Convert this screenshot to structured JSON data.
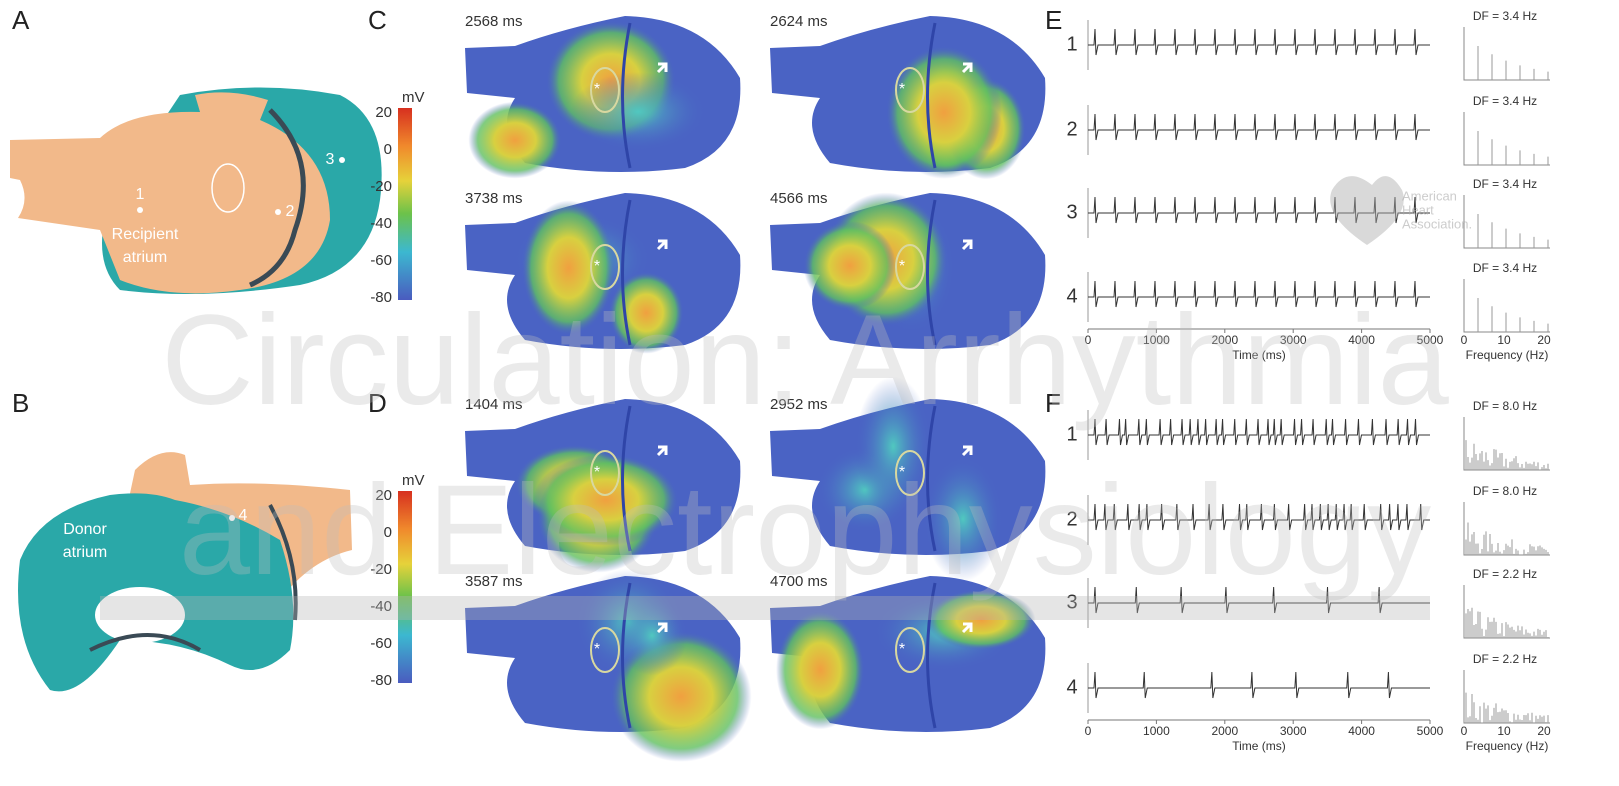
{
  "watermark": {
    "line1": "Circulation: Arrhythmia",
    "line2": "and Electrophysiology",
    "logo": [
      "American",
      "Heart",
      "Association."
    ]
  },
  "panels": {
    "A": {
      "label": "A",
      "points": [
        "1",
        "2",
        "3"
      ],
      "region": [
        "Recipient",
        "atrium"
      ]
    },
    "B": {
      "label": "B",
      "points": [
        "4"
      ],
      "region": [
        "Donor",
        "atrium"
      ]
    },
    "C": {
      "label": "C",
      "colorbar": {
        "unit": "mV",
        "ticks": [
          "20",
          "0",
          "-20",
          "-40",
          "-60",
          "-80"
        ]
      },
      "frames": [
        "2568 ms",
        "2624 ms",
        "3738 ms",
        "4566 ms"
      ],
      "marker": "*"
    },
    "D": {
      "label": "D",
      "colorbar": {
        "unit": "mV",
        "ticks": [
          "20",
          "0",
          "-20",
          "-40",
          "-60",
          "-80"
        ]
      },
      "frames": [
        "1404 ms",
        "2952 ms",
        "3587 ms",
        "4700 ms"
      ],
      "marker": "*"
    },
    "E": {
      "label": "E",
      "leads": [
        "1",
        "2",
        "3",
        "4"
      ],
      "df": [
        "DF = 3.4 Hz",
        "DF = 3.4 Hz",
        "DF = 3.4 Hz",
        "DF = 3.4 Hz"
      ],
      "time_ticks": [
        "0",
        "1000",
        "2000",
        "3000",
        "4000",
        "5000"
      ],
      "time_label": "Time (ms)",
      "freq_ticks": [
        "0",
        "10",
        "20"
      ],
      "freq_label": "Frequency (Hz)"
    },
    "F": {
      "label": "F",
      "leads": [
        "1",
        "2",
        "3",
        "4"
      ],
      "df": [
        "DF = 8.0 Hz",
        "DF = 8.0 Hz",
        "DF = 2.2 Hz",
        "DF = 2.2 Hz"
      ],
      "time_ticks": [
        "0",
        "1000",
        "2000",
        "3000",
        "4000",
        "5000"
      ],
      "time_label": "Time (ms)",
      "freq_ticks": [
        "0",
        "10",
        "20"
      ],
      "freq_label": "Frequency (Hz)"
    }
  }
}
